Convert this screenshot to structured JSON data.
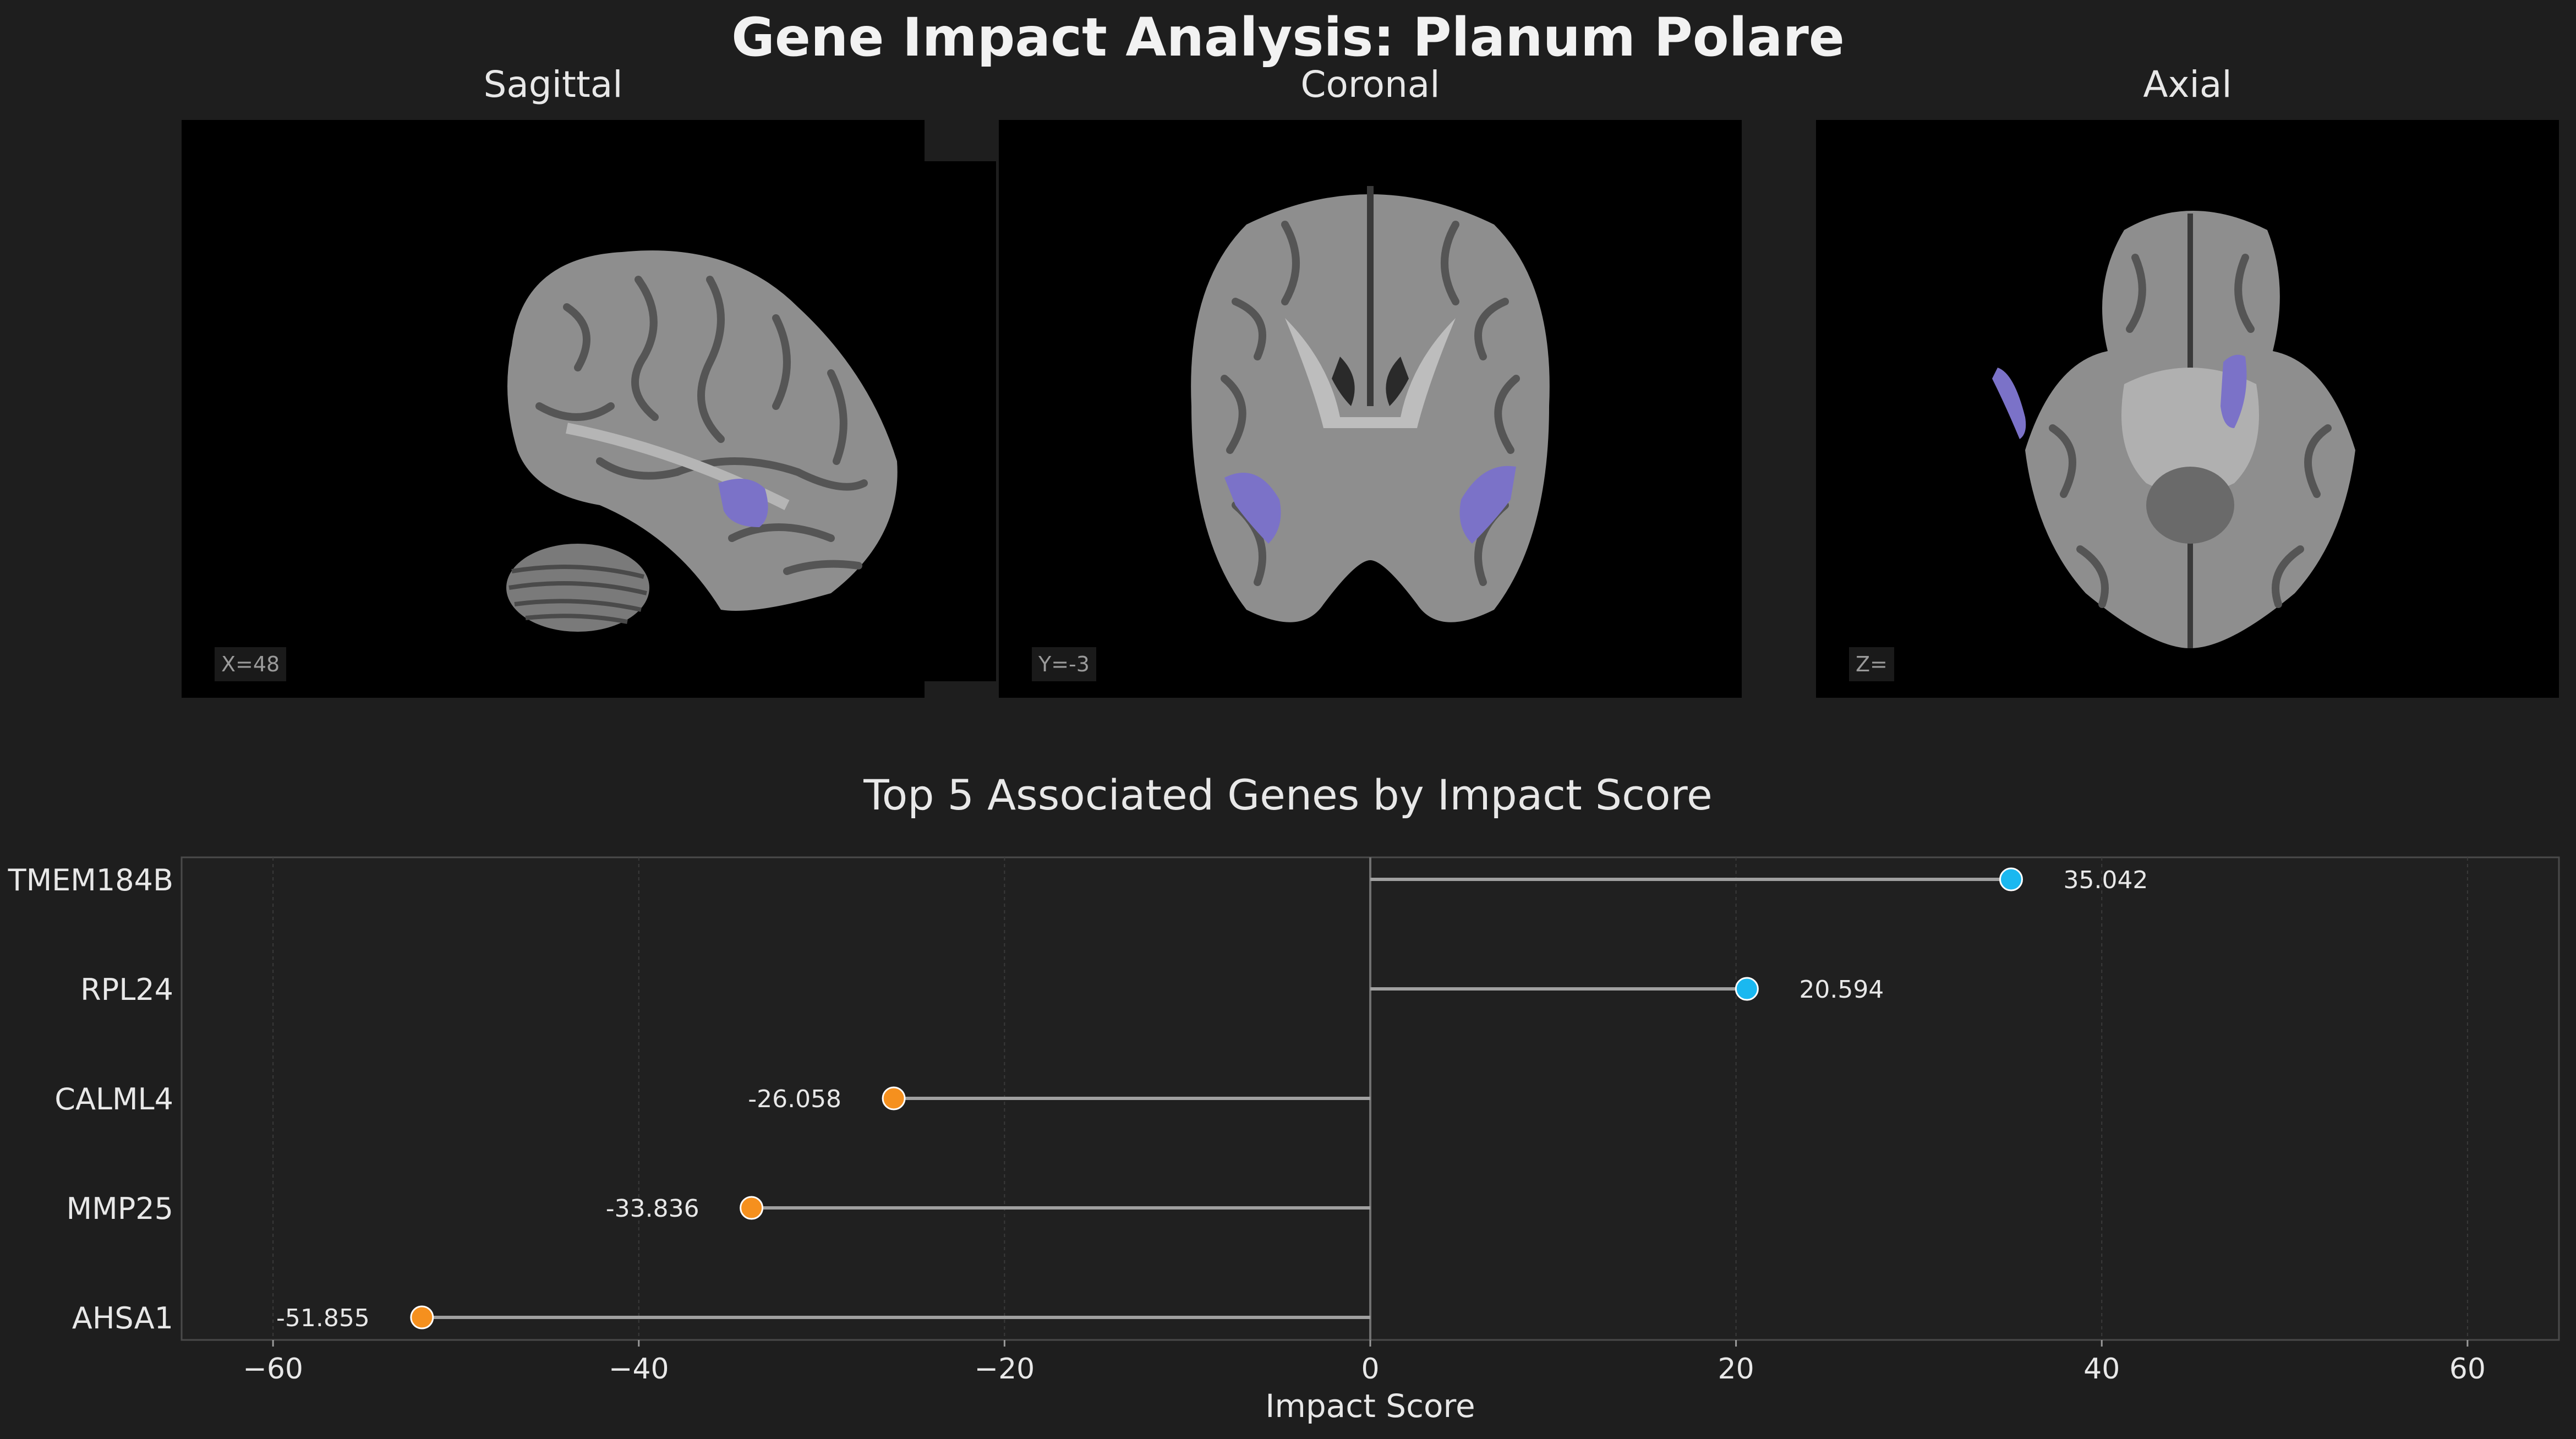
{
  "title": "Gene Impact Analysis: Planum Polare",
  "views": [
    {
      "title": "Sagittal",
      "coord": "X=48"
    },
    {
      "title": "Coronal",
      "coord": "Y=-3"
    },
    {
      "title": "Axial",
      "coord": "Z="
    }
  ],
  "colors": {
    "background": "#1e1e1e",
    "positive": "#1ab8f0",
    "negative": "#f5901e",
    "region_overlay": "#7b72c8",
    "stem": "#a0a0a0"
  },
  "chart_data": {
    "type": "scatter",
    "title": "Top 5 Associated Genes by Impact Score",
    "xlabel": "Impact Score",
    "ylabel": "",
    "categories": [
      "TMEM184B",
      "RPL24",
      "CALML4",
      "MMP25",
      "AHSA1"
    ],
    "values": [
      35.042,
      20.594,
      -26.058,
      -33.836,
      -51.855
    ],
    "value_labels": [
      "35.042",
      "20.594",
      "-26.058",
      "-33.836",
      "-51.855"
    ],
    "xlim": [
      -65,
      65
    ],
    "xticks": [
      -60,
      -40,
      -20,
      0,
      20,
      40,
      60
    ],
    "xtick_labels": [
      "−60",
      "−40",
      "−20",
      "0",
      "20",
      "40",
      "60"
    ],
    "grid": true,
    "style": "lollipop"
  }
}
